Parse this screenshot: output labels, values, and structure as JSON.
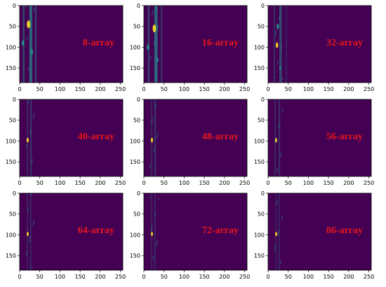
{
  "colors": {
    "background": "#440154",
    "low": "#46337e",
    "mid": "#21918c",
    "high": "#fde725",
    "label": "#e8161b"
  },
  "chart_data": [
    {
      "type": "heatmap",
      "title": "8-array",
      "x_ticks": [
        "0",
        "50",
        "100",
        "150",
        "200",
        "250"
      ],
      "y_ticks": [
        "0",
        "50",
        "100",
        "150"
      ],
      "xlim": [
        0,
        256
      ],
      "ylim": [
        0,
        185
      ]
    },
    {
      "type": "heatmap",
      "title": "16-array",
      "x_ticks": [
        "0",
        "50",
        "100",
        "150",
        "200",
        "250"
      ],
      "y_ticks": [
        "0",
        "50",
        "100",
        "150"
      ],
      "xlim": [
        0,
        256
      ],
      "ylim": [
        0,
        185
      ]
    },
    {
      "type": "heatmap",
      "title": "32-array",
      "x_ticks": [
        "0",
        "50",
        "100",
        "150",
        "200",
        "250"
      ],
      "y_ticks": [
        "0",
        "50",
        "100",
        "150"
      ],
      "xlim": [
        0,
        256
      ],
      "ylim": [
        0,
        185
      ]
    },
    {
      "type": "heatmap",
      "title": "40-array",
      "x_ticks": [
        "0",
        "50",
        "100",
        "150",
        "200",
        "250"
      ],
      "y_ticks": [
        "0",
        "50",
        "100",
        "150"
      ],
      "xlim": [
        0,
        256
      ],
      "ylim": [
        0,
        185
      ]
    },
    {
      "type": "heatmap",
      "title": "48-array",
      "x_ticks": [
        "0",
        "50",
        "100",
        "150",
        "200",
        "250"
      ],
      "y_ticks": [
        "0",
        "50",
        "100",
        "150"
      ],
      "xlim": [
        0,
        256
      ],
      "ylim": [
        0,
        185
      ]
    },
    {
      "type": "heatmap",
      "title": "56-array",
      "x_ticks": [
        "0",
        "50",
        "100",
        "150",
        "200",
        "250"
      ],
      "y_ticks": [
        "0",
        "50",
        "100",
        "150"
      ],
      "xlim": [
        0,
        256
      ],
      "ylim": [
        0,
        185
      ]
    },
    {
      "type": "heatmap",
      "title": "64-array",
      "x_ticks": [
        "0",
        "50",
        "100",
        "150",
        "200",
        "250"
      ],
      "y_ticks": [
        "0",
        "50",
        "100",
        "150"
      ],
      "xlim": [
        0,
        256
      ],
      "ylim": [
        0,
        185
      ]
    },
    {
      "type": "heatmap",
      "title": "72-array",
      "x_ticks": [
        "0",
        "50",
        "100",
        "150",
        "200",
        "250"
      ],
      "y_ticks": [
        "0",
        "50",
        "100",
        "150"
      ],
      "xlim": [
        0,
        256
      ],
      "ylim": [
        0,
        185
      ]
    },
    {
      "type": "heatmap",
      "title": "86-array",
      "x_ticks": [
        "0",
        "50",
        "100",
        "150",
        "200",
        "250"
      ],
      "y_ticks": [
        "0",
        "50",
        "100",
        "150"
      ],
      "xlim": [
        0,
        256
      ],
      "ylim": [
        0,
        185
      ]
    }
  ]
}
